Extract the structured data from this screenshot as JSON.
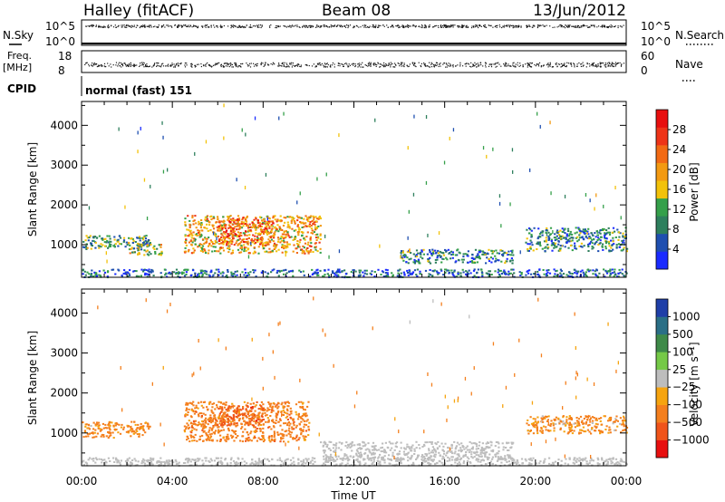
{
  "header": {
    "station": "Halley (fitACF)",
    "beam": "Beam 08",
    "date": "13/Jun/2012"
  },
  "strips": {
    "nsky_label": "N.Sky",
    "nsky_ticks": [
      "10^5",
      "10^0"
    ],
    "nsearch_label": "N.Search",
    "nsearch_ticks": [
      "10^5",
      "10^0"
    ],
    "freq_label": "Freq.",
    "freq_unit": "[MHz]",
    "freq_ticks": [
      "18",
      "8"
    ],
    "nave_label": "Nave",
    "nave_ticks": [
      "60",
      "0"
    ],
    "cpid_label": "CPID",
    "cpid_text": "normal (fast) 151"
  },
  "colors": {
    "scatter_fill": "#1a1a1a",
    "power_scale": [
      "#1a2bff",
      "#1f4fb0",
      "#2e7f5d",
      "#35a04a",
      "#f2c20a",
      "#f39a12",
      "#f26a14",
      "#ee3418",
      "#e80f0f"
    ],
    "velocity_scale": [
      "#e80f0f",
      "#f0541a",
      "#f47f1d",
      "#f6a40f",
      "#bdbdbd",
      "#75c947",
      "#3e8a48",
      "#2a6f86",
      "#1f3fa8"
    ]
  },
  "chart_data": [
    {
      "type": "heatmap",
      "title": "",
      "ylabel": "Slant Range [km]",
      "xlabel": "",
      "ylim": [
        180,
        4600
      ],
      "yticks": [
        "1000",
        "2000",
        "3000",
        "4000"
      ],
      "colorbar": {
        "label": "Power [dB]",
        "range": [
          0,
          30
        ],
        "ticks": [
          "4",
          "8",
          "12",
          "16",
          "20",
          "24",
          "28"
        ]
      },
      "echo_regions": [
        {
          "t_start_h": 0.0,
          "t_end_h": 3.0,
          "range_km": [
            900,
            1250
          ],
          "dominant_value": 10
        },
        {
          "t_start_h": 2.0,
          "t_end_h": 3.5,
          "range_km": [
            750,
            1050
          ],
          "dominant_value": 14
        },
        {
          "t_start_h": 4.5,
          "t_end_h": 10.5,
          "range_km": [
            800,
            1750
          ],
          "dominant_value": 18
        },
        {
          "t_start_h": 6.0,
          "t_end_h": 8.5,
          "range_km": [
            1000,
            1650
          ],
          "dominant_value": 22
        },
        {
          "t_start_h": 14.0,
          "t_end_h": 19.0,
          "range_km": [
            550,
            900
          ],
          "dominant_value": 8
        },
        {
          "t_start_h": 19.5,
          "t_end_h": 24.0,
          "range_km": [
            850,
            1450
          ],
          "dominant_value": 8
        },
        {
          "t_start_h": 0.0,
          "t_end_h": 24.0,
          "range_km": [
            200,
            400
          ],
          "dominant_value": 6
        }
      ]
    },
    {
      "type": "heatmap",
      "title": "",
      "ylabel": "Slant Range [km]",
      "xlabel": "Time UT",
      "ylim": [
        180,
        4600
      ],
      "yticks": [
        "1000",
        "2000",
        "3000",
        "4000"
      ],
      "x_ticks": [
        "00:00",
        "04:00",
        "08:00",
        "12:00",
        "16:00",
        "20:00",
        "00:00"
      ],
      "colorbar": {
        "label": "Velocity [m s⁻¹]",
        "ticks": [
          "1000",
          "500",
          "100",
          "25",
          "−25",
          "−100",
          "−500",
          "−1000"
        ]
      },
      "echo_regions": [
        {
          "t_start_h": 0.0,
          "t_end_h": 3.0,
          "range_km": [
            900,
            1300
          ],
          "dominant_value": -200
        },
        {
          "t_start_h": 4.5,
          "t_end_h": 10.0,
          "range_km": [
            800,
            1800
          ],
          "dominant_value": -300
        },
        {
          "t_start_h": 6.0,
          "t_end_h": 8.0,
          "range_km": [
            1200,
            1700
          ],
          "dominant_value": -600
        },
        {
          "t_start_h": 10.5,
          "t_end_h": 19.0,
          "range_km": [
            350,
            800
          ],
          "dominant_value": 0
        },
        {
          "t_start_h": 19.5,
          "t_end_h": 24.0,
          "range_km": [
            1000,
            1450
          ],
          "dominant_value": -150
        },
        {
          "t_start_h": 0.0,
          "t_end_h": 24.0,
          "range_km": [
            200,
            400
          ],
          "dominant_value": 0
        }
      ]
    }
  ]
}
